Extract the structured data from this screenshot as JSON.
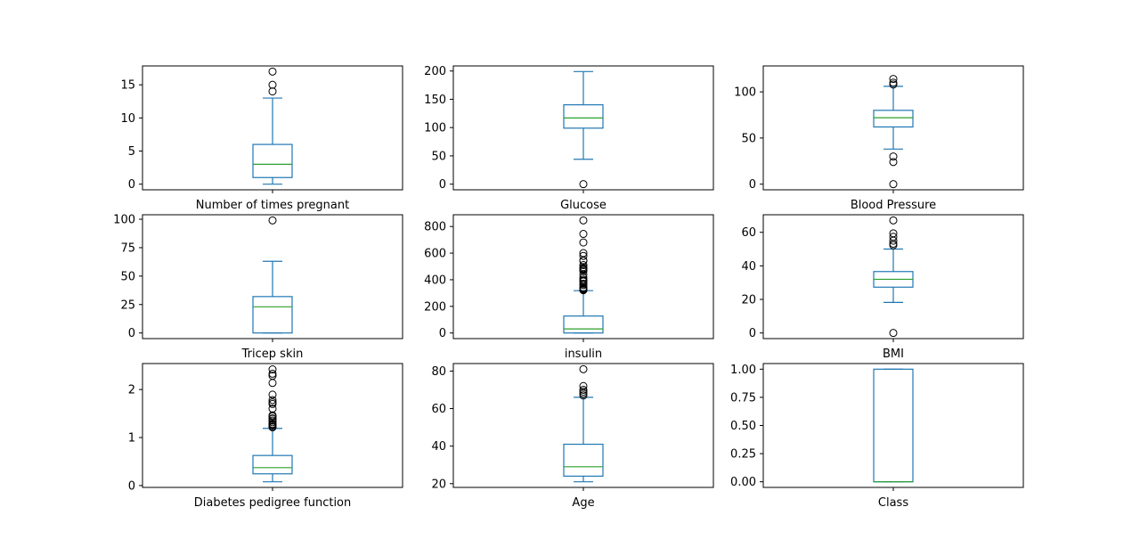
{
  "style": {
    "box_color": "#1f77b4",
    "median_color": "#2ca02c",
    "flier_edge_color": "#000000",
    "frame_color": "#000000",
    "background": "#ffffff"
  },
  "chart_data": [
    {
      "type": "boxplot",
      "xlabel": "Number of times pregnant",
      "ylim": [
        -0.85,
        17.85
      ],
      "yticks": [
        0,
        5,
        10,
        15
      ],
      "ytick_labels": [
        "0",
        "5",
        "10",
        "15"
      ],
      "box": {
        "min": 0,
        "q1": 1,
        "median": 3,
        "q3": 6,
        "max": 13
      },
      "outliers": [
        14,
        15,
        17
      ]
    },
    {
      "type": "boxplot",
      "xlabel": "Glucose",
      "ylim": [
        -9.95,
        208.95
      ],
      "yticks": [
        0,
        50,
        100,
        150,
        200
      ],
      "ytick_labels": [
        "0",
        "50",
        "100",
        "150",
        "200"
      ],
      "box": {
        "min": 44,
        "q1": 99,
        "median": 117,
        "q3": 140.25,
        "max": 199
      },
      "outliers": [
        0
      ]
    },
    {
      "type": "boxplot",
      "xlabel": "Blood Pressure",
      "ylim": [
        -6.1,
        128.1
      ],
      "yticks": [
        0,
        50,
        100
      ],
      "ytick_labels": [
        "0",
        "50",
        "100"
      ],
      "box": {
        "min": 38,
        "q1": 62,
        "median": 72,
        "q3": 80,
        "max": 106
      },
      "outliers": [
        0,
        24,
        30,
        108,
        110,
        114
      ]
    },
    {
      "type": "boxplot",
      "xlabel": "Tricep skin",
      "ylim": [
        -4.95,
        103.95
      ],
      "yticks": [
        0,
        25,
        50,
        75,
        100
      ],
      "ytick_labels": [
        "0",
        "25",
        "50",
        "75",
        "100"
      ],
      "box": {
        "min": 0,
        "q1": 0,
        "median": 23,
        "q3": 32,
        "max": 63
      },
      "outliers": [
        99
      ]
    },
    {
      "type": "boxplot",
      "xlabel": "insulin",
      "ylim": [
        -42.3,
        888.3
      ],
      "yticks": [
        0,
        200,
        400,
        600,
        800
      ],
      "ytick_labels": [
        "0",
        "200",
        "400",
        "600",
        "800"
      ],
      "box": {
        "min": 0,
        "q1": 0,
        "median": 30.5,
        "q3": 127.25,
        "max": 318
      },
      "outliers": [
        321,
        325,
        330,
        335,
        342,
        360,
        370,
        387,
        392,
        400,
        415,
        440,
        465,
        474,
        480,
        485,
        495,
        510,
        543,
        545,
        579,
        600,
        680,
        744,
        846
      ]
    },
    {
      "type": "boxplot",
      "xlabel": "BMI",
      "ylim": [
        -3.355,
        70.455
      ],
      "yticks": [
        0,
        20,
        40,
        60
      ],
      "ytick_labels": [
        "0",
        "20",
        "40",
        "60"
      ],
      "box": {
        "min": 18.2,
        "q1": 27.3,
        "median": 32,
        "q3": 36.6,
        "max": 50
      },
      "outliers": [
        0,
        52.3,
        53.2,
        55,
        57.3,
        59.4,
        67.1
      ]
    },
    {
      "type": "boxplot",
      "xlabel": "Diabetes pedigree function",
      "ylim": [
        -0.039,
        2.541
      ],
      "yticks": [
        0,
        1,
        2
      ],
      "ytick_labels": [
        "0",
        "1",
        "2"
      ],
      "box": {
        "min": 0.078,
        "q1": 0.244,
        "median": 0.3725,
        "q3": 0.626,
        "max": 1.191
      },
      "outliers": [
        1.213,
        1.224,
        1.251,
        1.268,
        1.282,
        1.318,
        1.353,
        1.39,
        1.4,
        1.441,
        1.461,
        1.6,
        1.698,
        1.731,
        1.781,
        1.893,
        2.137,
        2.288,
        2.329,
        2.42
      ]
    },
    {
      "type": "boxplot",
      "xlabel": "Age",
      "ylim": [
        18,
        84
      ],
      "yticks": [
        20,
        40,
        60,
        80
      ],
      "ytick_labels": [
        "20",
        "40",
        "60",
        "80"
      ],
      "box": {
        "min": 21,
        "q1": 24,
        "median": 29,
        "q3": 41,
        "max": 66
      },
      "outliers": [
        67,
        68,
        69,
        70,
        72,
        81
      ]
    },
    {
      "type": "boxplot",
      "xlabel": "Class",
      "ylim": [
        -0.05,
        1.05
      ],
      "yticks": [
        0,
        0.25,
        0.5,
        0.75,
        1
      ],
      "ytick_labels": [
        "0.00",
        "0.25",
        "0.50",
        "0.75",
        "1.00"
      ],
      "box": {
        "min": 0,
        "q1": 0,
        "median": 0,
        "q3": 1,
        "max": 1
      },
      "outliers": []
    }
  ]
}
